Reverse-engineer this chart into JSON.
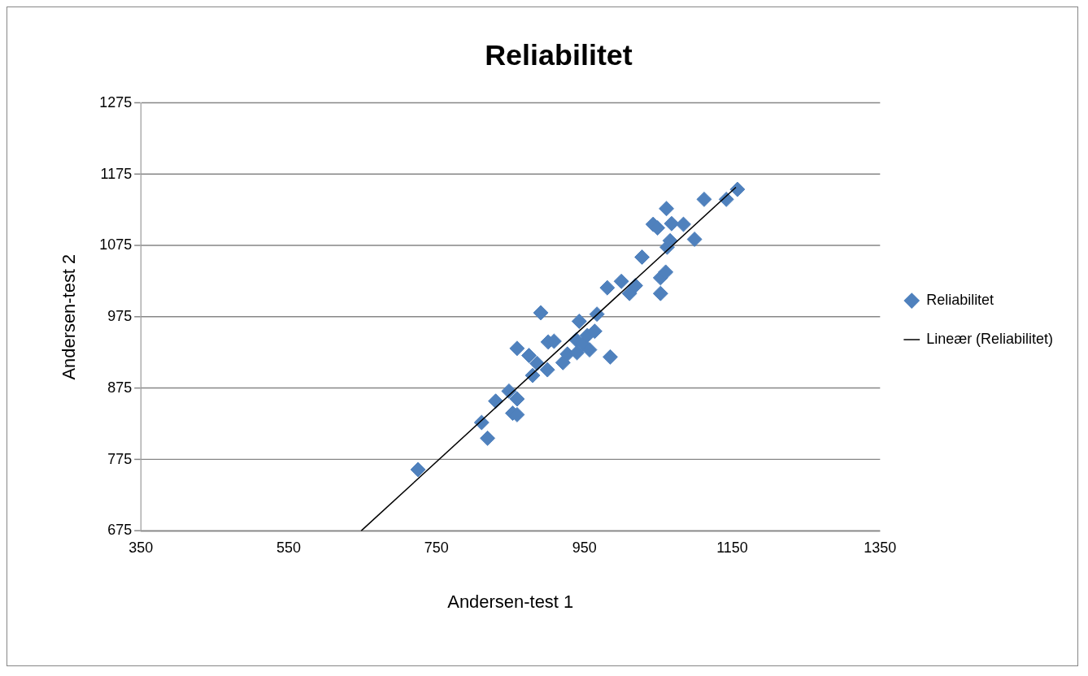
{
  "chart_data": {
    "type": "scatter",
    "title": "Reliabilitet",
    "xlabel": "Andersen-test 1",
    "ylabel": "Andersen-test 2",
    "xlim": [
      350,
      1350
    ],
    "ylim": [
      675,
      1275
    ],
    "xticks": [
      350,
      550,
      750,
      950,
      1150,
      1350
    ],
    "yticks": [
      675,
      775,
      875,
      975,
      1075,
      1175,
      1275
    ],
    "grid": "y",
    "legend": "right",
    "marker": "diamond",
    "series": [
      {
        "name": "Reliabilitet",
        "color": "#4f81bd",
        "x": [
          725,
          811,
          819,
          830,
          848,
          853,
          859,
          859,
          859,
          875,
          880,
          886,
          891,
          900,
          901,
          909,
          921,
          927,
          939,
          943,
          940,
          948,
          957,
          954,
          964,
          967,
          985,
          981,
          1000,
          1011,
          1019,
          1028,
          1043,
          1049,
          1053,
          1053,
          1060,
          1061,
          1062,
          1066,
          1068,
          1084,
          1099,
          1112,
          1142,
          1157
        ],
        "values": [
          761,
          827,
          805,
          857,
          871,
          840,
          838,
          860,
          931,
          921,
          893,
          910,
          981,
          901,
          940,
          941,
          911,
          923,
          943,
          969,
          925,
          937,
          929,
          949,
          955,
          979,
          919,
          1016,
          1025,
          1008,
          1019,
          1059,
          1105,
          1100,
          1008,
          1030,
          1038,
          1127,
          1073,
          1082,
          1106,
          1105,
          1084,
          1140,
          1140,
          1154
        ]
      },
      {
        "type": "line",
        "name": "Lineær (Reliabilitet)",
        "color": "#000000",
        "marker": "none",
        "x": [
          648,
          1155
        ],
        "values": [
          675,
          1157
        ]
      }
    ]
  }
}
